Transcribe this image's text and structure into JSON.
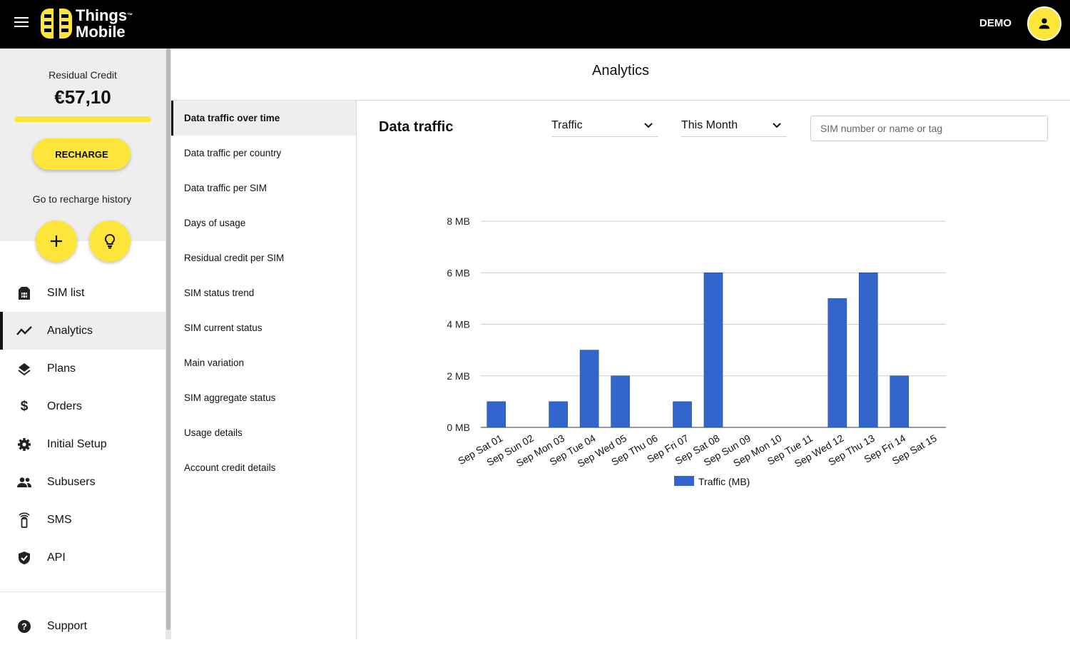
{
  "header": {
    "brand_line1": "Things",
    "brand_tm": "™",
    "brand_line2": "Mobile",
    "user_label": "DEMO",
    "menu_icon": "hamburger-icon",
    "user_icon": "account-icon"
  },
  "colors": {
    "accent": "#fde53a",
    "bar": "#3366cc",
    "topbar": "#000000"
  },
  "sidebar": {
    "credit_label": "Residual Credit",
    "credit_value": "€57,10",
    "credit_fill": 1.0,
    "recharge_label": "RECHARGE",
    "history_label": "Go to recharge history",
    "quick_actions": [
      {
        "icon": "plus-icon"
      },
      {
        "icon": "lightbulb-icon"
      }
    ],
    "items": [
      {
        "label": "SIM list",
        "icon": "sim-card-icon",
        "active": false
      },
      {
        "label": "Analytics",
        "icon": "trending-icon",
        "active": true
      },
      {
        "label": "Plans",
        "icon": "layers-icon",
        "active": false
      },
      {
        "label": "Orders",
        "icon": "dollar-icon",
        "active": false
      },
      {
        "label": "Initial Setup",
        "icon": "gear-icon",
        "active": false
      },
      {
        "label": "Subusers",
        "icon": "people-icon",
        "active": false
      },
      {
        "label": "SMS",
        "icon": "phone-signal-icon",
        "active": false
      },
      {
        "label": "API",
        "icon": "shield-icon",
        "active": false
      }
    ],
    "support_label": "Support",
    "support_icon": "help-icon"
  },
  "main": {
    "title": "Analytics",
    "submenu": [
      {
        "label": "Data traffic over time",
        "active": true
      },
      {
        "label": "Data traffic per country",
        "active": false
      },
      {
        "label": "Data traffic per SIM",
        "active": false
      },
      {
        "label": "Days of usage",
        "active": false
      },
      {
        "label": "Residual credit per SIM",
        "active": false
      },
      {
        "label": "SIM status trend",
        "active": false
      },
      {
        "label": "SIM current status",
        "active": false
      },
      {
        "label": "Main variation",
        "active": false
      },
      {
        "label": "SIM aggregate status",
        "active": false
      },
      {
        "label": "Usage details",
        "active": false
      },
      {
        "label": "Account credit details",
        "active": false
      }
    ],
    "content_title": "Data traffic",
    "metric_select": "Traffic",
    "period_select": "This Month",
    "search_placeholder": "SIM number or name or tag"
  },
  "chart_data": {
    "type": "bar",
    "categories": [
      "Sep Sat 01",
      "Sep Sun 02",
      "Sep Mon 03",
      "Sep Tue 04",
      "Sep Wed 05",
      "Sep Thu 06",
      "Sep Fri 07",
      "Sep Sat 08",
      "Sep Sun 09",
      "Sep Mon 10",
      "Sep Tue 11",
      "Sep Wed 12",
      "Sep Thu 13",
      "Sep Fri 14",
      "Sep Sat 15"
    ],
    "series": [
      {
        "name": "Traffic (MB)",
        "values": [
          1,
          0,
          1,
          3,
          2,
          0,
          1,
          6,
          0,
          0,
          0,
          5,
          6,
          2,
          0
        ]
      }
    ],
    "y_ticks": [
      "0 MB",
      "2 MB",
      "4 MB",
      "6 MB",
      "8 MB"
    ],
    "ylim": [
      0,
      8
    ],
    "grid": true,
    "legend": "bottom"
  }
}
